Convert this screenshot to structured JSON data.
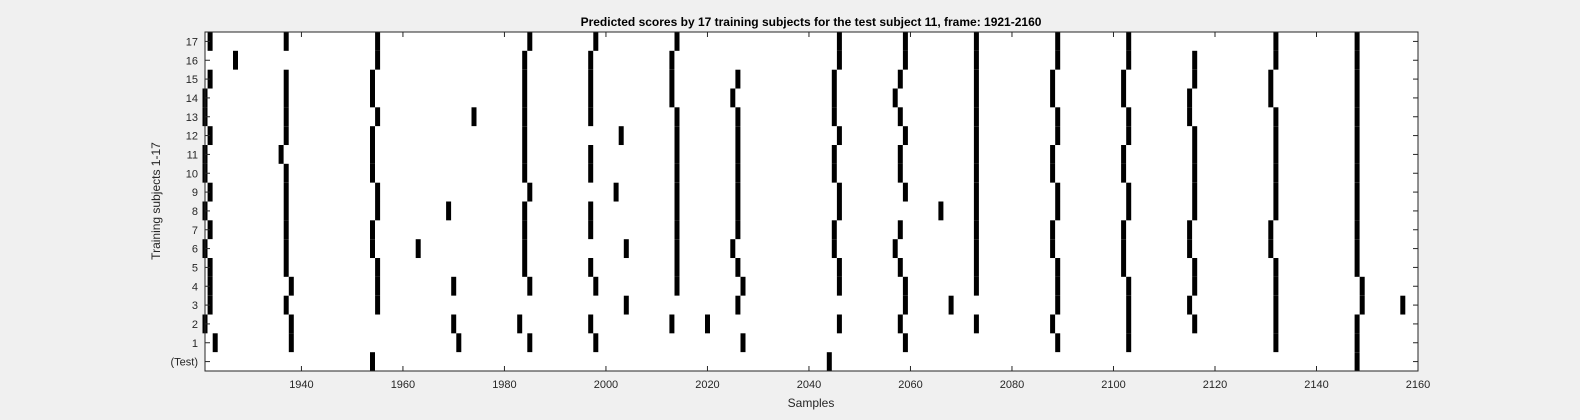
{
  "chart_data": {
    "type": "heatmap",
    "title": "Predicted scores by 17 training subjects for the test subject 11, frame: 1921-2160",
    "xlabel": "Samples",
    "ylabel": "Training subjects 1-17",
    "xlim": [
      1921,
      2160
    ],
    "x_ticks": [
      1940,
      1960,
      1980,
      2000,
      2020,
      2040,
      2060,
      2080,
      2100,
      2120,
      2140,
      2160
    ],
    "rows": [
      "(Test)",
      "1",
      "2",
      "3",
      "4",
      "5",
      "6",
      "7",
      "8",
      "9",
      "10",
      "11",
      "12",
      "13",
      "14",
      "15",
      "16",
      "17"
    ],
    "colors": {
      "mark": "#000000",
      "background": "#ffffff",
      "figure": "#f0f0f0"
    },
    "series": [
      {
        "name": "(Test)",
        "x": [
          1954,
          2044,
          2148
        ]
      },
      {
        "name": "1",
        "x": [
          1923,
          1938,
          1971,
          1985,
          1998,
          2027,
          2059,
          2089,
          2103,
          2132,
          2148
        ]
      },
      {
        "name": "2",
        "x": [
          1921,
          1938,
          1970,
          1983,
          1997,
          2013,
          2020,
          2046,
          2058,
          2073,
          2088,
          2103,
          2116,
          2132,
          2148
        ]
      },
      {
        "name": "3",
        "x": [
          1922,
          1937,
          1955,
          2004,
          2026,
          2059,
          2068,
          2089,
          2103,
          2115,
          2132,
          2149,
          2157
        ]
      },
      {
        "name": "4",
        "x": [
          1922,
          1938,
          1955,
          1970,
          1985,
          1998,
          2014,
          2027,
          2046,
          2059,
          2073,
          2089,
          2103,
          2116,
          2132,
          2149
        ]
      },
      {
        "name": "5",
        "x": [
          1922,
          1937,
          1955,
          1984,
          1997,
          2014,
          2026,
          2046,
          2058,
          2073,
          2089,
          2102,
          2116,
          2132,
          2148
        ]
      },
      {
        "name": "6",
        "x": [
          1921,
          1937,
          1954,
          1963,
          1984,
          2004,
          2014,
          2025,
          2045,
          2057,
          2073,
          2088,
          2102,
          2115,
          2131,
          2148
        ]
      },
      {
        "name": "7",
        "x": [
          1922,
          1937,
          1954,
          1984,
          1997,
          2014,
          2026,
          2045,
          2058,
          2073,
          2088,
          2102,
          2115,
          2131,
          2148
        ]
      },
      {
        "name": "8",
        "x": [
          1921,
          1937,
          1955,
          1969,
          1984,
          1997,
          2014,
          2026,
          2046,
          2066,
          2073,
          2089,
          2103,
          2116,
          2132,
          2148
        ]
      },
      {
        "name": "9",
        "x": [
          1922,
          1937,
          1955,
          1985,
          2002,
          2014,
          2026,
          2046,
          2059,
          2073,
          2089,
          2103,
          2116,
          2132,
          2148
        ]
      },
      {
        "name": "10",
        "x": [
          1921,
          1937,
          1954,
          1984,
          1997,
          2014,
          2026,
          2045,
          2058,
          2073,
          2088,
          2102,
          2116,
          2132,
          2148
        ]
      },
      {
        "name": "11",
        "x": [
          1921,
          1936,
          1954,
          1984,
          1997,
          2014,
          2026,
          2045,
          2058,
          2073,
          2088,
          2102,
          2116,
          2132,
          2148
        ]
      },
      {
        "name": "12",
        "x": [
          1922,
          1937,
          1954,
          1984,
          2003,
          2014,
          2026,
          2046,
          2059,
          2073,
          2089,
          2103,
          2116,
          2132,
          2148
        ]
      },
      {
        "name": "13",
        "x": [
          1921,
          1937,
          1955,
          1974,
          1984,
          1997,
          2014,
          2026,
          2045,
          2058,
          2073,
          2089,
          2103,
          2115,
          2132,
          2148
        ]
      },
      {
        "name": "14",
        "x": [
          1921,
          1937,
          1954,
          1984,
          1997,
          2013,
          2025,
          2045,
          2057,
          2073,
          2088,
          2102,
          2115,
          2131,
          2148
        ]
      },
      {
        "name": "15",
        "x": [
          1922,
          1937,
          1954,
          1984,
          1997,
          2013,
          2026,
          2045,
          2058,
          2073,
          2088,
          2102,
          2116,
          2131,
          2148
        ]
      },
      {
        "name": "16",
        "x": [
          1927,
          1955,
          1984,
          1997,
          2013,
          2046,
          2059,
          2073,
          2089,
          2103,
          2116,
          2132,
          2148
        ]
      },
      {
        "name": "17",
        "x": [
          1922,
          1937,
          1955,
          1985,
          1998,
          2014,
          2046,
          2059,
          2073,
          2089,
          2103,
          2132,
          2148
        ]
      }
    ]
  }
}
